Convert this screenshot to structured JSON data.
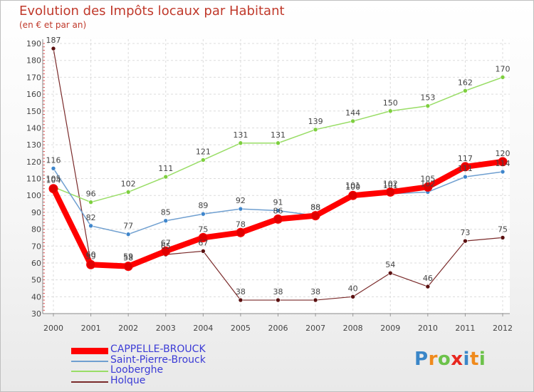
{
  "chart_data": {
    "type": "line",
    "title": "Evolution des Impôts locaux par Habitant",
    "subtitle": "(en € et par an)",
    "x": [
      "2000",
      "2001",
      "2002",
      "2003",
      "2004",
      "2005",
      "2006",
      "2007",
      "2008",
      "2009",
      "2010",
      "2011",
      "2012"
    ],
    "ylim": [
      30,
      190
    ],
    "yticks": [
      30,
      40,
      50,
      60,
      70,
      80,
      90,
      100,
      110,
      120,
      130,
      140,
      150,
      160,
      170,
      180,
      190
    ],
    "grid": true,
    "legend_position": "bottom-left",
    "series": [
      {
        "name": "CAPPELLE-BROUCK",
        "color": "#ff0000",
        "marker_color": "#e00000",
        "values": [
          104,
          59,
          58,
          67,
          75,
          78,
          86,
          88,
          100,
          102,
          105,
          117,
          120
        ]
      },
      {
        "name": "Saint-Pierre-Brouck",
        "color": "#6f9fd0",
        "marker_color": "#3f86cc",
        "values": [
          116,
          82,
          77,
          85,
          89,
          92,
          91,
          88,
          101,
          101,
          102,
          111,
          114
        ]
      },
      {
        "name": "Looberghe",
        "color": "#99dd66",
        "marker_color": "#7ecf3f",
        "values": [
          105,
          96,
          102,
          111,
          121,
          131,
          131,
          139,
          144,
          150,
          153,
          162,
          170
        ]
      },
      {
        "name": "Holque",
        "color": "#7a2a2a",
        "marker_color": "#5a1010",
        "values": [
          187,
          60,
          59,
          65,
          67,
          38,
          38,
          38,
          40,
          54,
          46,
          73,
          75
        ]
      }
    ]
  },
  "logo": {
    "letters": [
      {
        "ch": "P",
        "color": "#3a86c8"
      },
      {
        "ch": "r",
        "color": "#f08a1c"
      },
      {
        "ch": "o",
        "color": "#6cc24a"
      },
      {
        "ch": "x",
        "color": "#e8271f"
      },
      {
        "ch": "i",
        "color": "#3a86c8"
      },
      {
        "ch": "t",
        "color": "#f08a1c"
      },
      {
        "ch": "i",
        "color": "#6cc24a"
      }
    ]
  }
}
